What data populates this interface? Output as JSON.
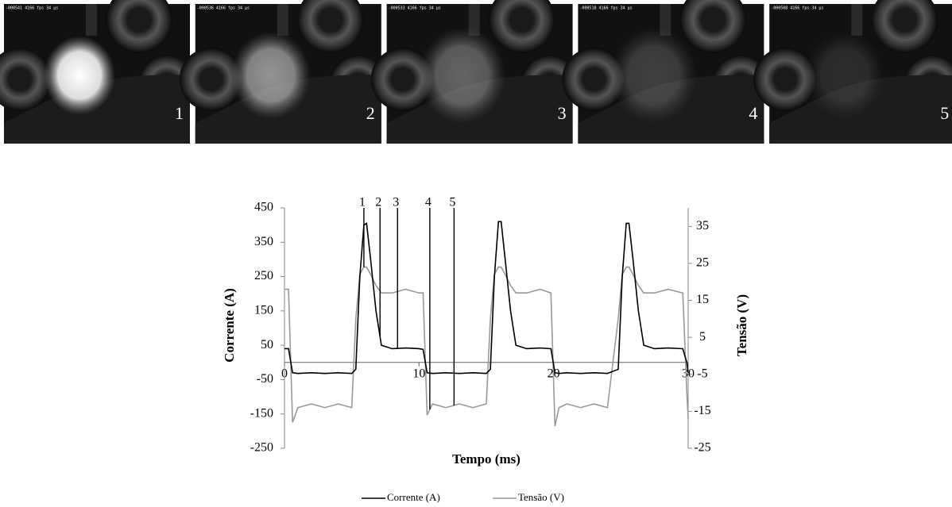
{
  "frames": [
    {
      "header": "-000541 4166 fps 34 µs",
      "label": "1"
    },
    {
      "header": "-000536 4166 fps 34 µs",
      "label": "2"
    },
    {
      "header": "-000533 4166 fps 34 µs",
      "label": "3"
    },
    {
      "header": "-000518 4166 fps 34 µs",
      "label": "4"
    },
    {
      "header": "-000508 4166 fps 34 µs",
      "label": "5"
    }
  ],
  "chart_data": {
    "type": "line",
    "x_label": "Tempo (ms)",
    "y_label": "Corrente (A)",
    "y2_label": "Tensão (V)",
    "x": [
      0,
      0.3,
      0.6,
      1,
      2,
      3,
      4,
      5,
      5.3,
      5.6,
      5.9,
      6.1,
      6.4,
      6.8,
      7.2,
      8,
      9,
      10,
      10.3,
      10.6,
      11,
      12,
      13,
      14,
      15,
      15.3,
      15.6,
      15.9,
      16.1,
      16.4,
      16.8,
      17.2,
      18,
      19,
      19.8,
      20.1,
      20.4,
      21,
      22,
      23,
      24,
      24.8,
      25.1,
      25.4,
      25.6,
      25.9,
      26.3,
      26.7,
      27.5,
      28.5,
      29.6,
      29.9,
      30
    ],
    "series": [
      {
        "name": "Corrente (A)",
        "color": "#000000",
        "values": [
          40,
          40,
          -30,
          -32,
          -30,
          -32,
          -30,
          -32,
          -20,
          250,
          400,
          405,
          300,
          150,
          50,
          40,
          42,
          40,
          38,
          -30,
          -32,
          -30,
          -32,
          -30,
          -32,
          -20,
          250,
          410,
          410,
          300,
          150,
          50,
          40,
          42,
          40,
          -30,
          -32,
          -30,
          -32,
          -30,
          -32,
          -20,
          250,
          405,
          405,
          300,
          150,
          50,
          40,
          42,
          40,
          0,
          -30
        ]
      },
      {
        "name": "Tensão (V)",
        "color": "#999999",
        "axis": "y2",
        "values": [
          18,
          18,
          -18,
          -14,
          -13,
          -14,
          -13,
          -14,
          10,
          22,
          24,
          24,
          22,
          19,
          17,
          17,
          18,
          17,
          17,
          -16,
          -13,
          -14,
          -13,
          -14,
          -13,
          10,
          22,
          24,
          24,
          22,
          19,
          17,
          17,
          18,
          17,
          -19,
          -14,
          -13,
          -14,
          -13,
          -14,
          10,
          22,
          24,
          24,
          22,
          19,
          17,
          17,
          18,
          17,
          -10,
          -17
        ]
      }
    ],
    "markers": [
      {
        "x": 5.9,
        "label": "1"
      },
      {
        "x": 7.1,
        "label": "2"
      },
      {
        "x": 8.4,
        "label": "3"
      },
      {
        "x": 10.8,
        "label": "4"
      },
      {
        "x": 12.6,
        "label": "5"
      }
    ],
    "xlim": [
      0,
      30
    ],
    "xticks": [
      0,
      10,
      20,
      30
    ],
    "ylim": [
      -250,
      450
    ],
    "yticks": [
      450,
      350,
      250,
      150,
      50,
      -50,
      -150,
      -250
    ],
    "y2lim": [
      -25,
      40
    ],
    "y2ticks": [
      35,
      25,
      15,
      5,
      -5,
      -15,
      -25
    ],
    "legend": "bottom"
  }
}
